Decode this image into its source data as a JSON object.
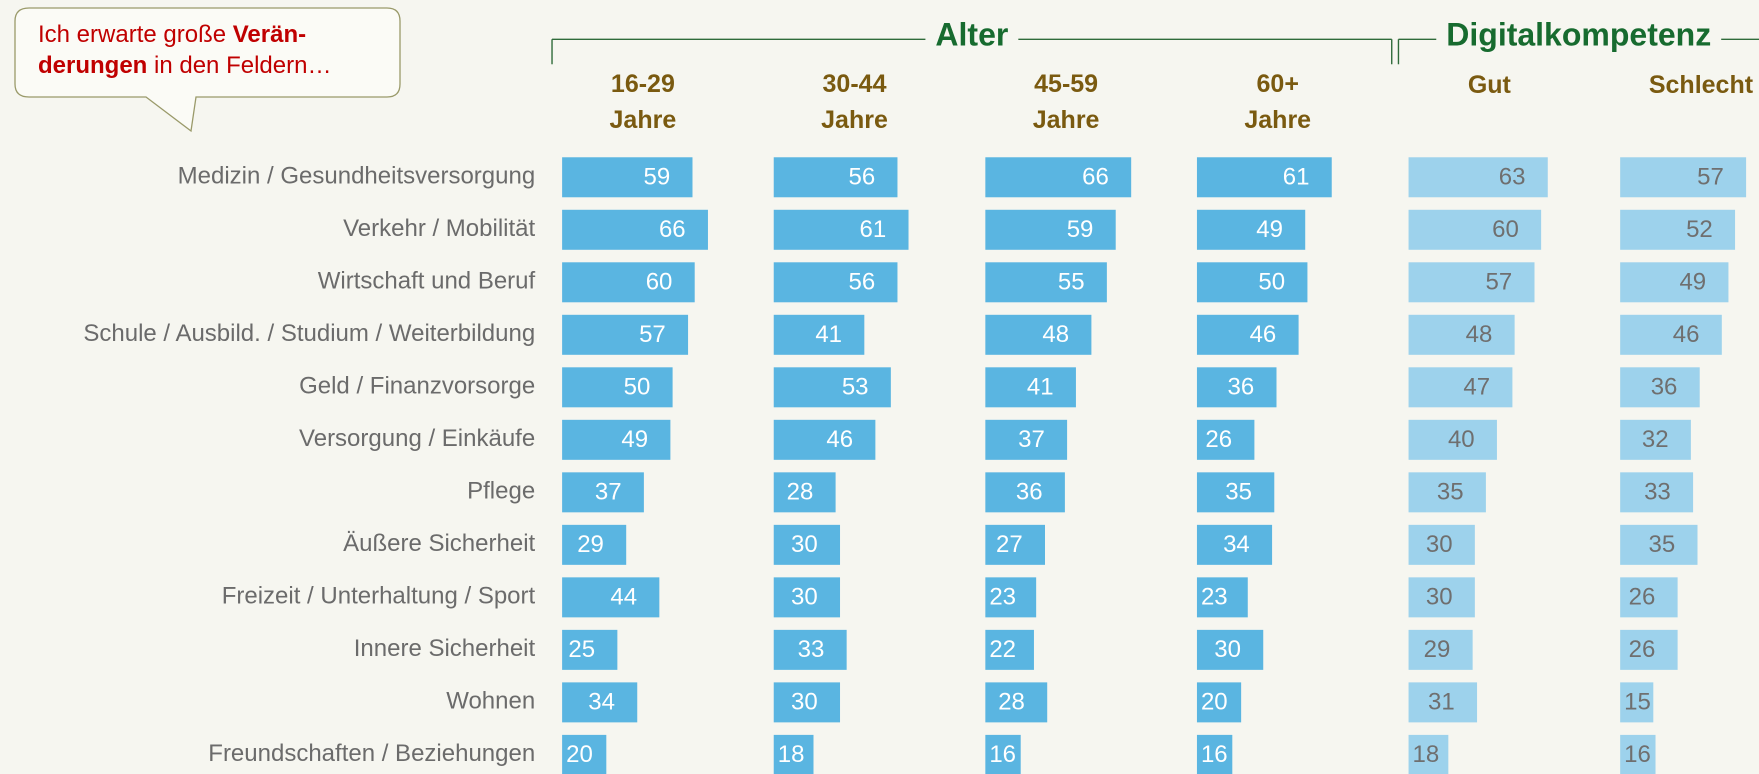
{
  "chart_data": {
    "type": "bar",
    "orientation": "horizontal",
    "callout": [
      "Ich erwarte große ",
      "Verän-",
      "derungen",
      " in den Feldern…"
    ],
    "groups": [
      {
        "title": "Alter",
        "series": [
          0,
          1,
          2,
          3
        ]
      },
      {
        "title": "Digitalkompetenz",
        "series": [
          4,
          5
        ]
      }
    ],
    "categories": [
      "Medizin / Gesundheitsversorgung",
      "Verkehr / Mobilität",
      "Wirtschaft und Beruf",
      "Schule / Ausbild. / Studium / Weiterbildung",
      "Geld / Finanzvorsorge",
      "Versorgung / Einkäufe",
      "Pflege",
      "Äußere Sicherheit",
      "Freizeit / Unterhaltung / Sport",
      "Innere Sicherheit",
      "Wohnen",
      "Freundschaften / Beziehungen"
    ],
    "series": [
      {
        "name": [
          "16-29",
          "Jahre"
        ],
        "color": "#5ab5e1",
        "label_color": "#ffffff",
        "values": [
          59,
          66,
          60,
          57,
          50,
          49,
          37,
          29,
          44,
          25,
          34,
          20
        ]
      },
      {
        "name": [
          "30-44",
          "Jahre"
        ],
        "color": "#5ab5e1",
        "label_color": "#ffffff",
        "values": [
          56,
          61,
          56,
          41,
          53,
          46,
          28,
          30,
          30,
          33,
          30,
          18
        ]
      },
      {
        "name": [
          "45-59",
          "Jahre"
        ],
        "color": "#5ab5e1",
        "label_color": "#ffffff",
        "values": [
          66,
          59,
          55,
          48,
          41,
          37,
          36,
          27,
          23,
          22,
          28,
          16
        ]
      },
      {
        "name": [
          "60+",
          "Jahre"
        ],
        "color": "#5ab5e1",
        "label_color": "#ffffff",
        "values": [
          61,
          49,
          50,
          46,
          36,
          26,
          35,
          34,
          23,
          30,
          20,
          16
        ]
      },
      {
        "name": [
          "Gut"
        ],
        "color": "#9dd2ec",
        "label_color": "#6f6f6f",
        "values": [
          63,
          60,
          57,
          48,
          47,
          40,
          35,
          30,
          30,
          29,
          31,
          18
        ]
      },
      {
        "name": [
          "Schlecht"
        ],
        "color": "#9dd2ec",
        "label_color": "#6f6f6f",
        "values": [
          57,
          52,
          49,
          46,
          36,
          32,
          33,
          35,
          26,
          26,
          15,
          16
        ]
      }
    ],
    "xlim": [
      0,
      84
    ]
  }
}
